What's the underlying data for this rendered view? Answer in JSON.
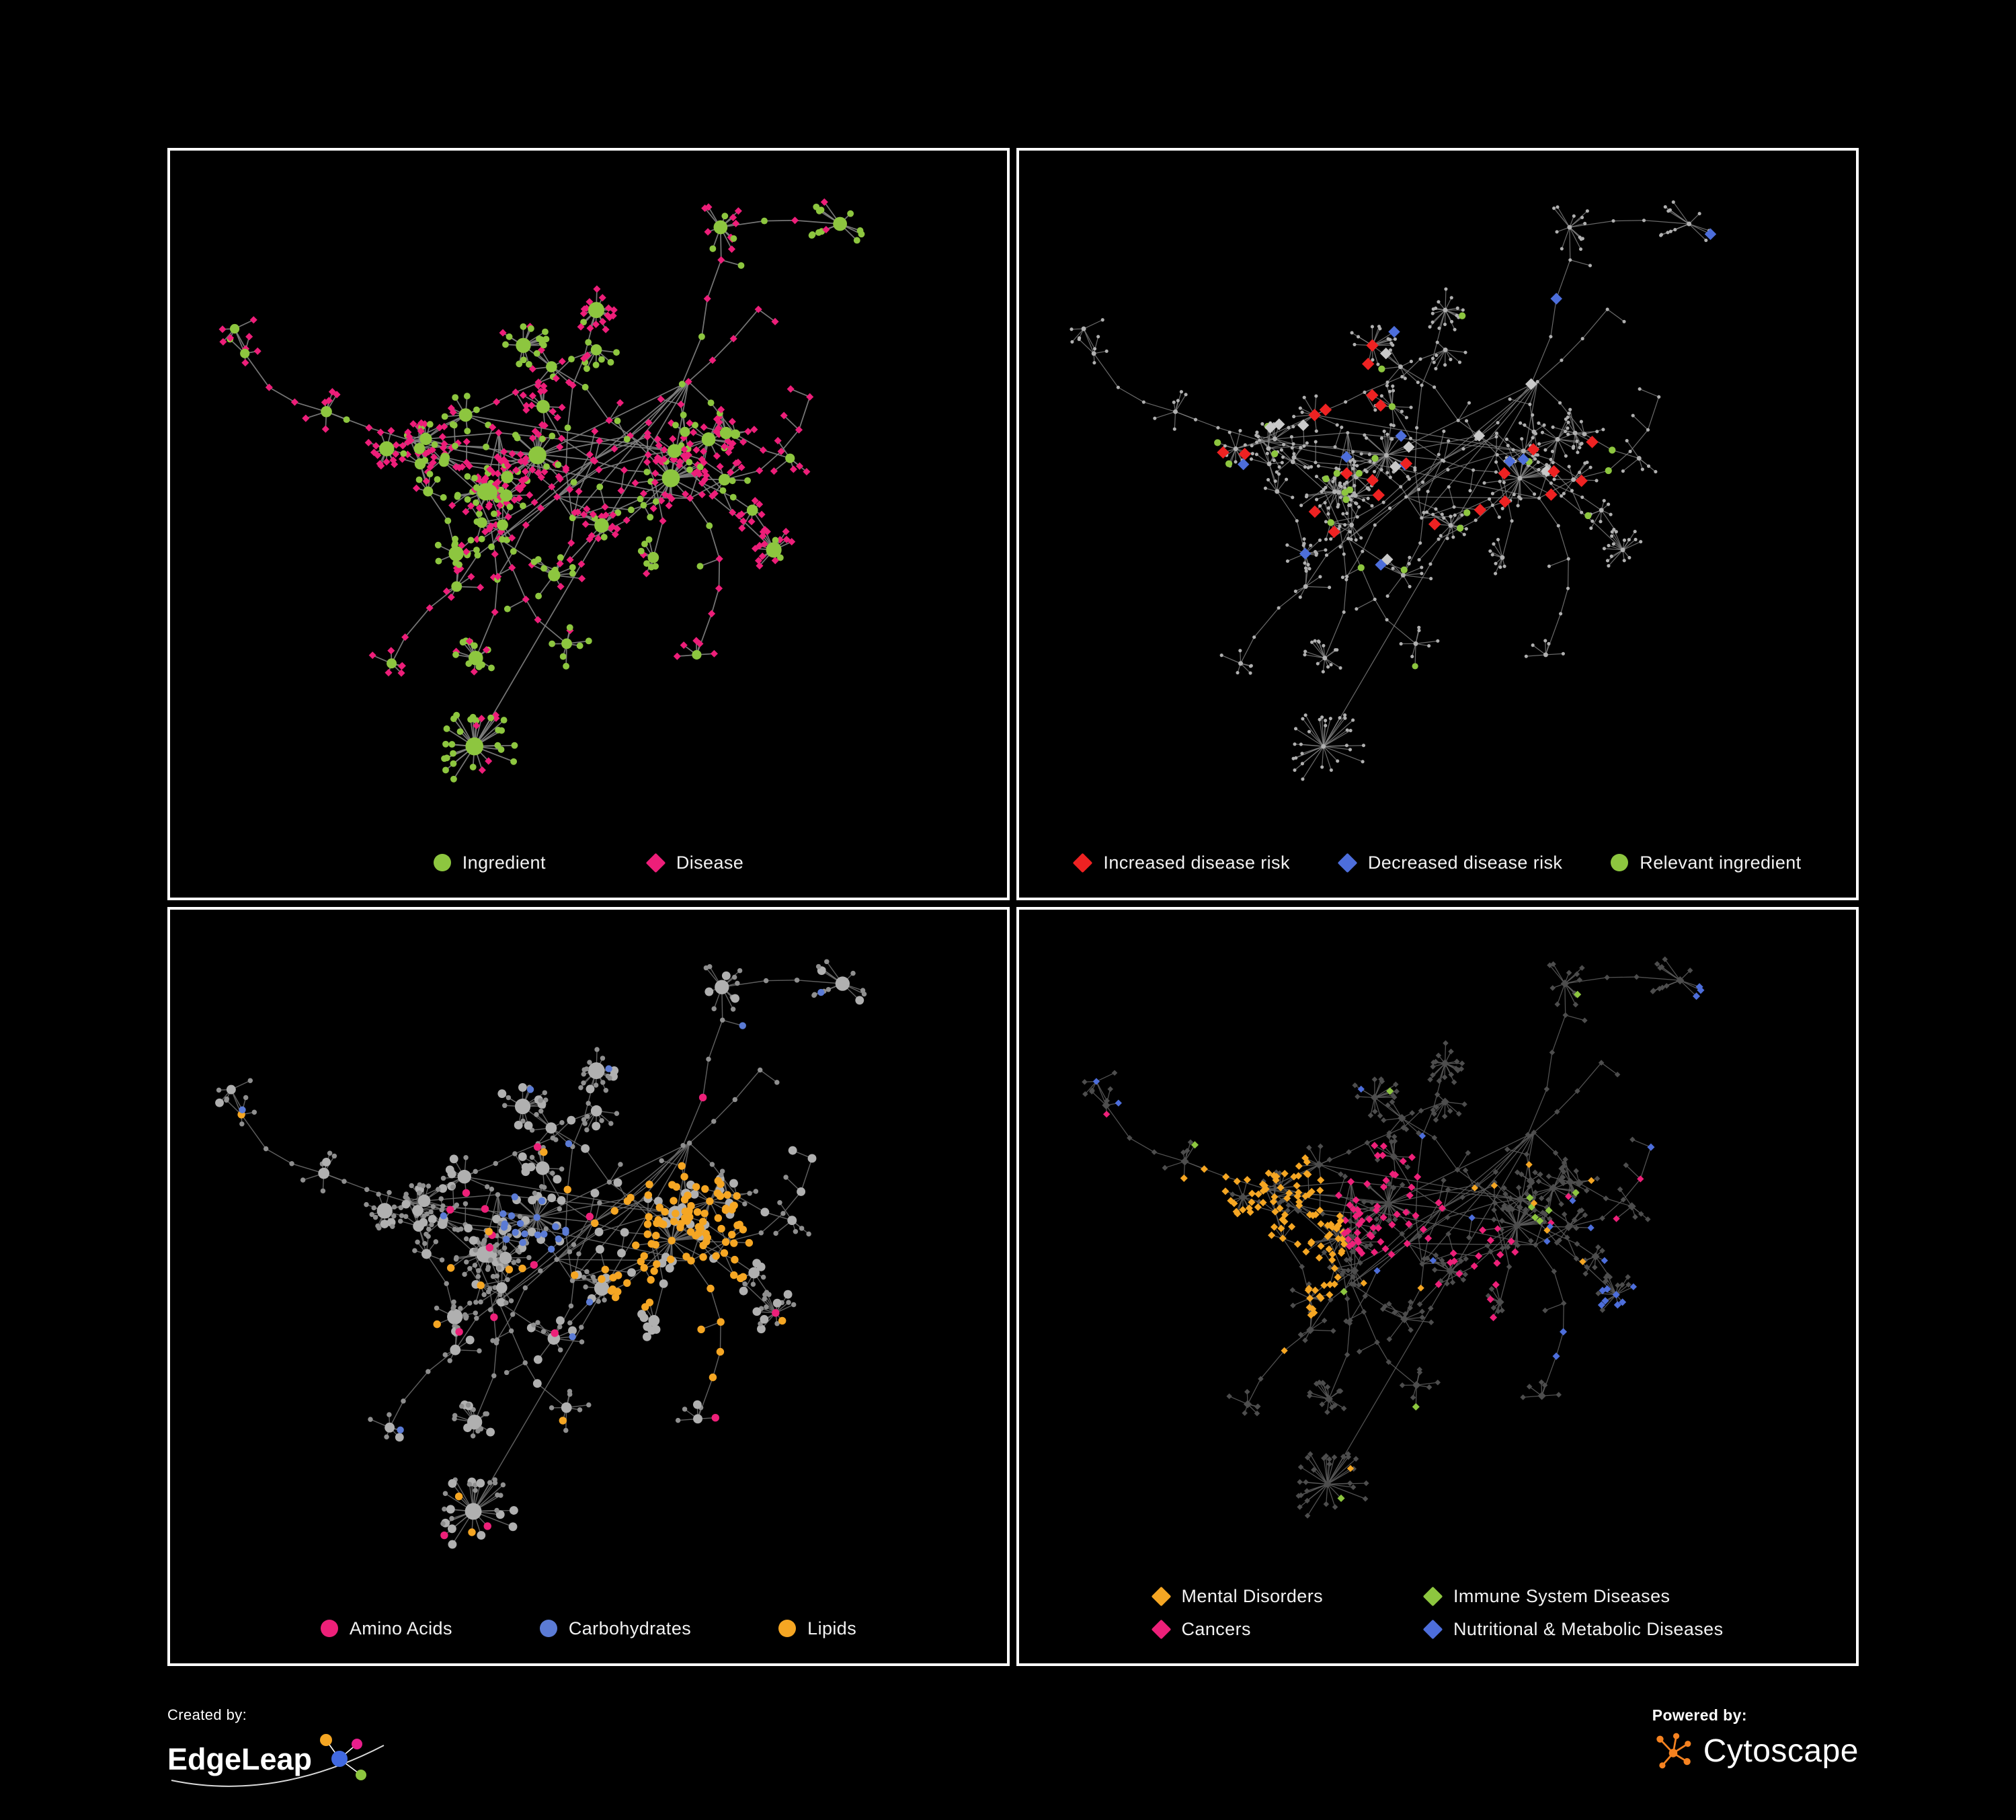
{
  "page": {
    "background": "#000000",
    "panel_border": "#ffffff"
  },
  "panels": [
    {
      "id": "ingredient-disease",
      "legend": [
        {
          "label": "Ingredient",
          "shape": "circle",
          "color": "#8dc63f"
        },
        {
          "label": "Disease",
          "shape": "diamond",
          "color": "#ed1e79"
        }
      ]
    },
    {
      "id": "disease-risk",
      "legend": [
        {
          "label": "Increased disease risk",
          "shape": "diamond",
          "color": "#ee2222"
        },
        {
          "label": "Decreased disease risk",
          "shape": "diamond",
          "color": "#4d6edb"
        },
        {
          "label": "Relevant ingredient",
          "shape": "circle",
          "color": "#8dc63f"
        }
      ]
    },
    {
      "id": "nutrients",
      "legend": [
        {
          "label": "Amino Acids",
          "shape": "circle",
          "color": "#ed2079"
        },
        {
          "label": "Carbohydrates",
          "shape": "circle",
          "color": "#5b7bd5"
        },
        {
          "label": "Lipids",
          "shape": "circle",
          "color": "#f5a623"
        }
      ]
    },
    {
      "id": "disease-categories",
      "legend": [
        {
          "label": "Mental Disorders",
          "shape": "diamond",
          "color": "#f5a623"
        },
        {
          "label": "Immune System Diseases",
          "shape": "diamond",
          "color": "#8dc63f"
        },
        {
          "label": "Cancers",
          "shape": "diamond",
          "color": "#ed2079"
        },
        {
          "label": "Nutritional & Metabolic Diseases",
          "shape": "diamond",
          "color": "#4d6edb"
        }
      ]
    }
  ],
  "network_colors": {
    "edge_light": "#828282",
    "edge_mid": "#6e6e6e",
    "edge_dark": "#5a5a5a",
    "node_gray": "#b0b0b0",
    "node_gray_dark": "#8f8f8f",
    "node_charcoal": "#4d4d4d",
    "muted_diamond": "#c9c9c9"
  },
  "footer": {
    "created_by": "Created by:",
    "edgeleap": "EdgeLeap",
    "powered_by": "Powered by:",
    "cytoscape": "Cytoscape"
  }
}
